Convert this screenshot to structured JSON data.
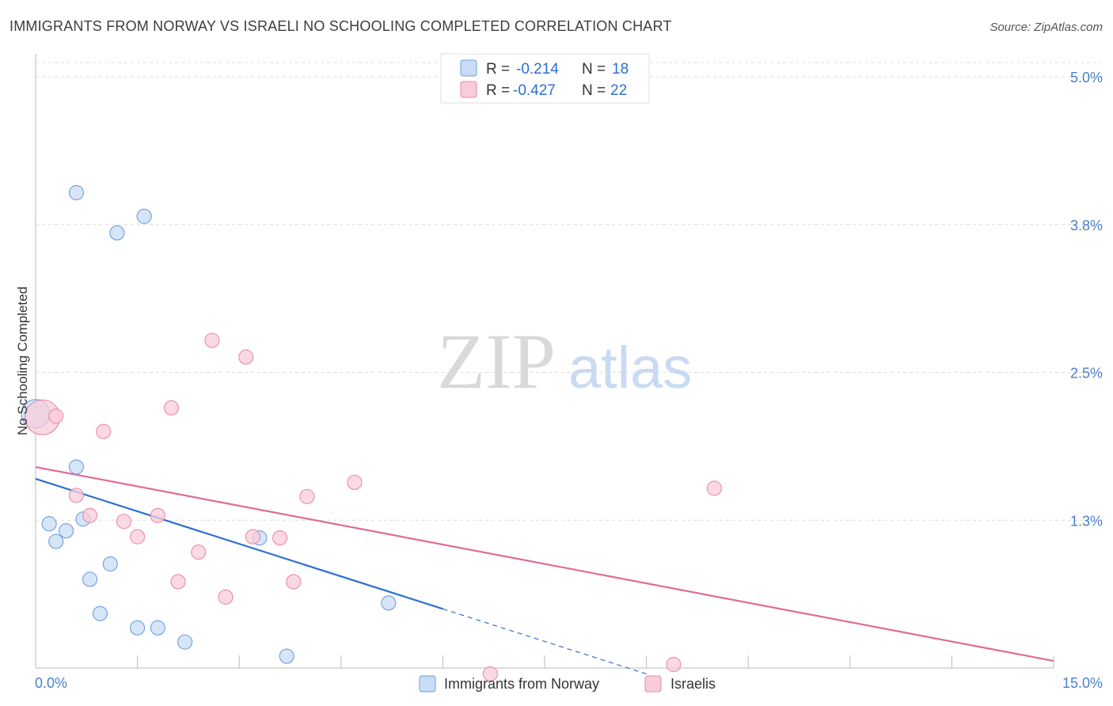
{
  "chart_data": {
    "type": "scatter",
    "title": "IMMIGRANTS FROM NORWAY VS ISRAELI NO SCHOOLING COMPLETED CORRELATION CHART",
    "source": "Source: ZipAtlas.com",
    "ylabel": "No Schooling Completed",
    "xlabel": "",
    "xlim": [
      0,
      15
    ],
    "ylim": [
      0,
      5.2
    ],
    "x_tick_labels": {
      "left": "0.0%",
      "right": "15.0%"
    },
    "y_ticks": [
      {
        "value": 1.25,
        "label": "1.3%"
      },
      {
        "value": 2.5,
        "label": "2.5%"
      },
      {
        "value": 3.75,
        "label": "3.8%"
      },
      {
        "value": 5.0,
        "label": "5.0%"
      }
    ],
    "legend": [
      {
        "r_label": "R =",
        "r_value": "-0.214",
        "n_label": "N =",
        "n_value": "18"
      },
      {
        "r_label": "R =",
        "r_value": "-0.427",
        "n_label": "N =",
        "n_value": "22"
      }
    ],
    "watermark": {
      "zip": "ZIP",
      "atlas": "atlas"
    },
    "series": [
      {
        "name": "Immigrants from Norway",
        "color": "#6b9ee0",
        "fill": "#c9dcf5",
        "points": [
          [
            0.0,
            2.15
          ],
          [
            0.6,
            4.02
          ],
          [
            1.6,
            3.82
          ],
          [
            1.2,
            3.68
          ],
          [
            0.6,
            1.7
          ],
          [
            0.2,
            1.22
          ],
          [
            0.7,
            1.26
          ],
          [
            0.45,
            1.16
          ],
          [
            0.3,
            1.07
          ],
          [
            1.1,
            0.88
          ],
          [
            0.8,
            0.75
          ],
          [
            0.95,
            0.46
          ],
          [
            1.5,
            0.34
          ],
          [
            1.8,
            0.34
          ],
          [
            2.2,
            0.22
          ],
          [
            3.3,
            1.1
          ],
          [
            3.7,
            0.1
          ],
          [
            5.2,
            0.55
          ]
        ],
        "point_sizes": [
          18,
          9,
          9,
          9,
          9,
          9,
          9,
          9,
          9,
          9,
          9,
          9,
          9,
          9,
          9,
          9,
          9,
          9
        ],
        "trend": {
          "x0": 0.0,
          "y0": 1.6,
          "x1": 6.0,
          "y1": 0.5,
          "dash_to_x": 9.0,
          "dash_to_y": -0.05,
          "color": "#2e6fd1"
        }
      },
      {
        "name": "Israelis",
        "color": "#e88aa8",
        "fill": "#f9ccd9",
        "points": [
          [
            0.1,
            2.12
          ],
          [
            0.3,
            2.13
          ],
          [
            1.0,
            2.0
          ],
          [
            2.6,
            2.77
          ],
          [
            3.1,
            2.63
          ],
          [
            2.0,
            2.2
          ],
          [
            0.6,
            1.46
          ],
          [
            0.8,
            1.29
          ],
          [
            1.3,
            1.24
          ],
          [
            1.8,
            1.29
          ],
          [
            1.5,
            1.11
          ],
          [
            2.4,
            0.98
          ],
          [
            3.2,
            1.11
          ],
          [
            3.6,
            1.1
          ],
          [
            4.0,
            1.45
          ],
          [
            4.7,
            1.57
          ],
          [
            2.1,
            0.73
          ],
          [
            2.8,
            0.6
          ],
          [
            3.8,
            0.73
          ],
          [
            6.7,
            -0.05
          ],
          [
            10.0,
            1.52
          ],
          [
            9.4,
            0.03
          ]
        ],
        "point_sizes": [
          22,
          9,
          9,
          9,
          9,
          9,
          9,
          9,
          9,
          9,
          9,
          9,
          9,
          9,
          9,
          9,
          9,
          9,
          9,
          9,
          9,
          9
        ],
        "trend": {
          "x0": 0.0,
          "y0": 1.7,
          "x1": 15.0,
          "y1": 0.06,
          "color": "#e06b96"
        }
      }
    ]
  }
}
